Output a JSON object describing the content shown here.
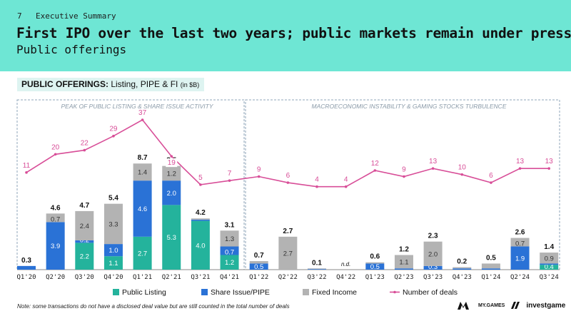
{
  "header": {
    "page_number": "7",
    "section": "Executive Summary",
    "title": "First IPO over the last two years; public markets remain under pressure",
    "subtitle": "Public offerings"
  },
  "chart_label": {
    "bold": "PUBLIC OFFERINGS:",
    "rest": " Listing, PIPE & FI ",
    "unit": "(in $B)"
  },
  "panels": [
    {
      "label": "PEAK OF PUBLIC LISTING & SHARE ISSUE ACTIVITY"
    },
    {
      "label": "MACROECONOMIC INSTABILITY & GAMING STOCKS TURBULENCE"
    }
  ],
  "note": "Note: some transactions do not have a disclosed deal value but are still counted in the total number of deals",
  "logos": {
    "mygames": "MY.GAMES",
    "investgame": "investgame"
  },
  "colors": {
    "listing": "#24b39c",
    "share_issue": "#2a72d6",
    "fixed_income": "#b3b3b3",
    "deals": "#d84e98"
  },
  "chart_data": {
    "type": "bar",
    "stacked": true,
    "categories": [
      "Q1'20",
      "Q2'20",
      "Q3'20",
      "Q4'20",
      "Q1'21",
      "Q2'21",
      "Q3'21",
      "Q4'21",
      "Q1'22",
      "Q2'22",
      "Q3'22",
      "Q4'22",
      "Q1'23",
      "Q2'23",
      "Q3'23",
      "Q4'23",
      "Q1'24",
      "Q2'24",
      "Q3'24"
    ],
    "series": [
      {
        "name": "Public Listing",
        "values": [
          0,
          0,
          2.2,
          1.1,
          2.7,
          5.3,
          4.0,
          1.2,
          0,
          0,
          0,
          0,
          0,
          0,
          0,
          0,
          0,
          0,
          0.4
        ]
      },
      {
        "name": "Share Issue/PIPE",
        "values": [
          0.3,
          3.9,
          0.2,
          1.0,
          4.6,
          2.0,
          0.1,
          0.7,
          0.5,
          0,
          0.05,
          0,
          0.5,
          0.1,
          0.3,
          0.1,
          0.1,
          1.9,
          0.1
        ]
      },
      {
        "name": "Fixed Income",
        "values": [
          0,
          0.7,
          2.4,
          3.3,
          1.4,
          1.2,
          0.1,
          1.3,
          0.2,
          2.7,
          0.05,
          0,
          0.1,
          1.1,
          2.0,
          0.1,
          0.4,
          0.7,
          0.9
        ]
      }
    ],
    "segment_labels": [
      [],
      [
        "",
        "3.9",
        "0.7"
      ],
      [
        "2.2",
        "0.2",
        "2.4"
      ],
      [
        "1.1",
        "1.0",
        "3.3"
      ],
      [
        "2.7",
        "4.6",
        "1.4"
      ],
      [
        "5.3",
        "2.0",
        "1.2"
      ],
      [
        "4.0",
        "",
        ""
      ],
      [
        "1.2",
        "0.7",
        "1.3"
      ],
      [
        "",
        "0.5",
        ""
      ],
      [
        "",
        "",
        "2.7"
      ],
      [],
      [],
      [
        "",
        "0.5",
        ""
      ],
      [
        "",
        "",
        "1.1"
      ],
      [
        "",
        "0.3",
        "2.0"
      ],
      [],
      [],
      [
        "",
        "1.9",
        "0.7"
      ],
      [
        "0.4",
        "",
        "0.9"
      ]
    ],
    "totals": [
      "0.3",
      "4.6",
      "4.7",
      "5.4",
      "8.7",
      "8.5",
      "4.2",
      "3.1",
      "0.7",
      "2.7",
      "0.1",
      "n.d.",
      "0.6",
      "1.2",
      "2.3",
      "0.2",
      "0.5",
      "2.6",
      "1.4"
    ],
    "line": {
      "name": "Number of deals",
      "values": [
        11,
        20,
        22,
        29,
        37,
        19,
        5,
        7,
        9,
        6,
        4,
        4,
        12,
        9,
        13,
        10,
        6,
        13,
        13
      ]
    },
    "legend": [
      "Public Listing",
      "Share Issue/PIPE",
      "Fixed Income",
      "Number of deals"
    ],
    "legend_position": "bottom",
    "grid": false
  }
}
